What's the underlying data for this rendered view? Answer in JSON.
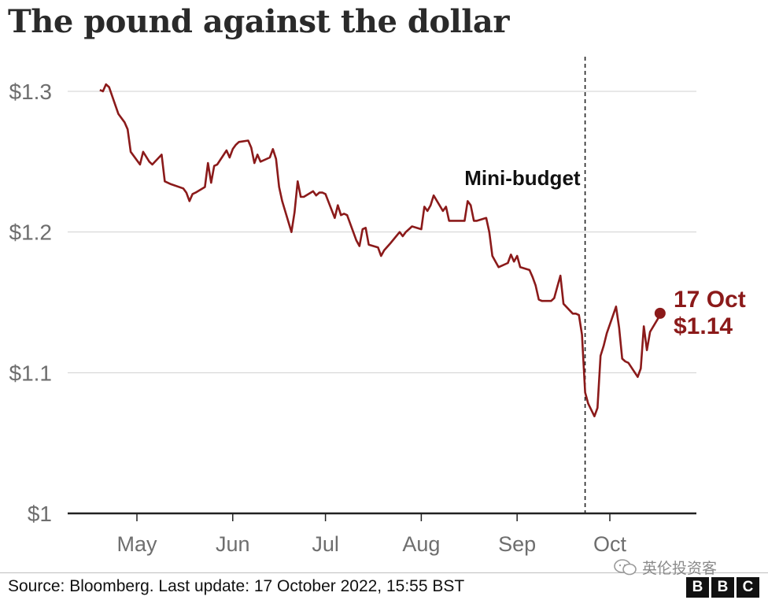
{
  "title": "The pound against the dollar",
  "source": "Source: Bloomberg. Last update: 17 October 2022, 15:55 BST",
  "watermark": "英伦投资客",
  "logo": [
    "B",
    "B",
    "C"
  ],
  "colors": {
    "line": "#8b1a1a",
    "grid": "#d0d0d0",
    "axis": "#222222",
    "tick_text": "#6e6e6e"
  },
  "chart_data": {
    "type": "line",
    "title": "The pound against the dollar",
    "y_ticks": [
      {
        "value": 1.0,
        "label": "$1"
      },
      {
        "value": 1.1,
        "label": "$1.1"
      },
      {
        "value": 1.2,
        "label": "$1.2"
      },
      {
        "value": 1.3,
        "label": "$1.3"
      }
    ],
    "ylim": [
      1.0,
      1.33
    ],
    "x_ticks": [
      {
        "date": "2022-05-01",
        "label": "May"
      },
      {
        "date": "2022-06-01",
        "label": "Jun"
      },
      {
        "date": "2022-07-01",
        "label": "Jul"
      },
      {
        "date": "2022-08-01",
        "label": "Aug"
      },
      {
        "date": "2022-09-01",
        "label": "Sep"
      },
      {
        "date": "2022-10-01",
        "label": "Oct"
      }
    ],
    "xlim": [
      "2022-04-11",
      "2022-10-29"
    ],
    "grid": true,
    "annotation": {
      "date": "2022-09-23",
      "label": "Mini-budget"
    },
    "endpoint": {
      "date": "2022-10-17",
      "value": 1.14,
      "label_date": "17 Oct",
      "label_value": "$1.14"
    },
    "series": [
      {
        "points": [
          [
            "2022-04-19",
            1.301
          ],
          [
            "2022-04-20",
            1.3
          ],
          [
            "2022-04-21",
            1.305
          ],
          [
            "2022-04-22",
            1.303
          ],
          [
            "2022-04-25",
            1.284
          ],
          [
            "2022-04-27",
            1.278
          ],
          [
            "2022-04-28",
            1.273
          ],
          [
            "2022-04-29",
            1.257
          ],
          [
            "2022-05-02",
            1.248
          ],
          [
            "2022-05-03",
            1.257
          ],
          [
            "2022-05-05",
            1.25
          ],
          [
            "2022-05-06",
            1.248
          ],
          [
            "2022-05-09",
            1.255
          ],
          [
            "2022-05-10",
            1.236
          ],
          [
            "2022-05-12",
            1.234
          ],
          [
            "2022-05-16",
            1.231
          ],
          [
            "2022-05-17",
            1.228
          ],
          [
            "2022-05-18",
            1.222
          ],
          [
            "2022-05-19",
            1.227
          ],
          [
            "2022-05-20",
            1.228
          ],
          [
            "2022-05-23",
            1.232
          ],
          [
            "2022-05-24",
            1.249
          ],
          [
            "2022-05-25",
            1.235
          ],
          [
            "2022-05-26",
            1.247
          ],
          [
            "2022-05-27",
            1.248
          ],
          [
            "2022-05-30",
            1.258
          ],
          [
            "2022-05-31",
            1.253
          ],
          [
            "2022-06-01",
            1.259
          ],
          [
            "2022-06-02",
            1.262
          ],
          [
            "2022-06-03",
            1.264
          ],
          [
            "2022-06-06",
            1.265
          ],
          [
            "2022-06-07",
            1.26
          ],
          [
            "2022-06-08",
            1.249
          ],
          [
            "2022-06-09",
            1.255
          ],
          [
            "2022-06-10",
            1.25
          ],
          [
            "2022-06-13",
            1.253
          ],
          [
            "2022-06-14",
            1.259
          ],
          [
            "2022-06-15",
            1.252
          ],
          [
            "2022-06-16",
            1.232
          ],
          [
            "2022-06-17",
            1.222
          ],
          [
            "2022-06-20",
            1.2
          ],
          [
            "2022-06-21",
            1.214
          ],
          [
            "2022-06-22",
            1.236
          ],
          [
            "2022-06-23",
            1.225
          ],
          [
            "2022-06-24",
            1.225
          ],
          [
            "2022-06-27",
            1.229
          ],
          [
            "2022-06-28",
            1.226
          ],
          [
            "2022-06-29",
            1.228
          ],
          [
            "2022-06-30",
            1.228
          ],
          [
            "2022-07-01",
            1.227
          ],
          [
            "2022-07-04",
            1.21
          ],
          [
            "2022-07-05",
            1.219
          ],
          [
            "2022-07-06",
            1.212
          ],
          [
            "2022-07-07",
            1.213
          ],
          [
            "2022-07-08",
            1.212
          ],
          [
            "2022-07-11",
            1.194
          ],
          [
            "2022-07-12",
            1.19
          ],
          [
            "2022-07-13",
            1.202
          ],
          [
            "2022-07-14",
            1.203
          ],
          [
            "2022-07-15",
            1.191
          ],
          [
            "2022-07-18",
            1.189
          ],
          [
            "2022-07-19",
            1.183
          ],
          [
            "2022-07-20",
            1.187
          ],
          [
            "2022-07-22",
            1.192
          ],
          [
            "2022-07-25",
            1.2
          ],
          [
            "2022-07-26",
            1.197
          ],
          [
            "2022-07-27",
            1.2
          ],
          [
            "2022-07-28",
            1.202
          ],
          [
            "2022-07-29",
            1.204
          ],
          [
            "2022-08-01",
            1.202
          ],
          [
            "2022-08-02",
            1.218
          ],
          [
            "2022-08-03",
            1.215
          ],
          [
            "2022-08-04",
            1.219
          ],
          [
            "2022-08-05",
            1.226
          ],
          [
            "2022-08-08",
            1.215
          ],
          [
            "2022-08-09",
            1.218
          ],
          [
            "2022-08-10",
            1.208
          ],
          [
            "2022-08-11",
            1.208
          ],
          [
            "2022-08-12",
            1.208
          ],
          [
            "2022-08-15",
            1.208
          ],
          [
            "2022-08-16",
            1.222
          ],
          [
            "2022-08-17",
            1.219
          ],
          [
            "2022-08-18",
            1.208
          ],
          [
            "2022-08-19",
            1.208
          ],
          [
            "2022-08-22",
            1.21
          ],
          [
            "2022-08-23",
            1.2
          ],
          [
            "2022-08-24",
            1.183
          ],
          [
            "2022-08-25",
            1.179
          ],
          [
            "2022-08-26",
            1.175
          ],
          [
            "2022-08-29",
            1.178
          ],
          [
            "2022-08-30",
            1.184
          ],
          [
            "2022-08-31",
            1.179
          ],
          [
            "2022-09-01",
            1.183
          ],
          [
            "2022-09-02",
            1.175
          ],
          [
            "2022-09-05",
            1.173
          ],
          [
            "2022-09-06",
            1.168
          ],
          [
            "2022-09-07",
            1.162
          ],
          [
            "2022-09-08",
            1.152
          ],
          [
            "2022-09-09",
            1.151
          ],
          [
            "2022-09-12",
            1.151
          ],
          [
            "2022-09-13",
            1.153
          ],
          [
            "2022-09-14",
            1.161
          ],
          [
            "2022-09-15",
            1.169
          ],
          [
            "2022-09-16",
            1.149
          ],
          [
            "2022-09-19",
            1.142
          ],
          [
            "2022-09-20",
            1.142
          ],
          [
            "2022-09-21",
            1.141
          ],
          [
            "2022-09-22",
            1.127
          ],
          [
            "2022-09-23",
            1.086
          ],
          [
            "2022-09-24",
            1.078
          ],
          [
            "2022-09-26",
            1.069
          ],
          [
            "2022-09-27",
            1.075
          ],
          [
            "2022-09-28",
            1.112
          ],
          [
            "2022-09-29",
            1.119
          ],
          [
            "2022-09-30",
            1.128
          ],
          [
            "2022-10-03",
            1.147
          ],
          [
            "2022-10-04",
            1.132
          ],
          [
            "2022-10-05",
            1.11
          ],
          [
            "2022-10-06",
            1.108
          ],
          [
            "2022-10-07",
            1.107
          ],
          [
            "2022-10-10",
            1.097
          ],
          [
            "2022-10-11",
            1.103
          ],
          [
            "2022-10-12",
            1.133
          ],
          [
            "2022-10-13",
            1.116
          ],
          [
            "2022-10-14",
            1.129
          ],
          [
            "2022-10-17",
            1.14
          ]
        ]
      }
    ]
  }
}
